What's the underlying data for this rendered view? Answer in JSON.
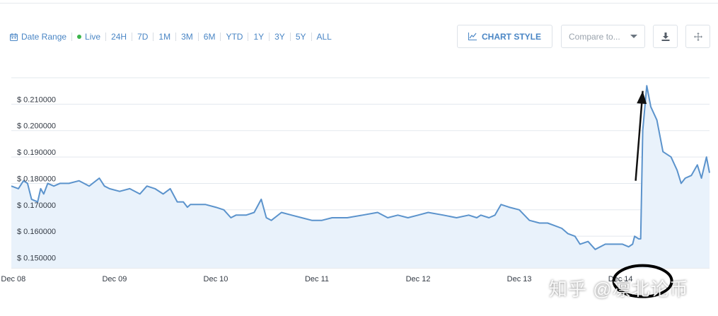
{
  "toolbar": {
    "date_range_label": "Date Range",
    "live_label": "Live",
    "live_color": "#3cb44b",
    "accent_color": "#4a86c5",
    "ranges": [
      "24H",
      "7D",
      "1M",
      "3M",
      "6M",
      "YTD",
      "1Y",
      "3Y",
      "5Y",
      "ALL"
    ],
    "chart_style_label": "CHART STYLE",
    "compare_placeholder": "Compare to...",
    "icons": [
      "calendar-icon",
      "bar-chart-icon",
      "chevron-down-icon",
      "download-icon",
      "move-icon"
    ]
  },
  "watermark": "知乎 @凛北论币",
  "chart_data": {
    "type": "area",
    "x_ticks": [
      "Dec 08",
      "Dec 09",
      "Dec 10",
      "Dec 11",
      "Dec 12",
      "Dec 13",
      "Dec 14"
    ],
    "x_tick_values": [
      8,
      9,
      10,
      11,
      12,
      13,
      14
    ],
    "xlim": [
      7.98,
      14.88
    ],
    "y_ticks": [
      "$ 0.150000",
      "$ 0.160000",
      "$ 0.170000",
      "$ 0.180000",
      "$ 0.190000",
      "$ 0.200000",
      "$ 0.210000"
    ],
    "y_tick_values": [
      0.15,
      0.16,
      0.17,
      0.18,
      0.19,
      0.2,
      0.21
    ],
    "ylim": [
      0.148,
      0.22
    ],
    "grid": true,
    "line_color": "#5b93cc",
    "fill_color": "#e9f2fb",
    "series": [
      {
        "x": [
          7.98,
          8.05,
          8.1,
          8.14,
          8.18,
          8.24,
          8.27,
          8.3,
          8.34,
          8.4,
          8.46,
          8.55,
          8.65,
          8.75,
          8.85,
          8.9,
          8.95,
          9.05,
          9.15,
          9.25,
          9.32,
          9.4,
          9.48,
          9.55,
          9.62,
          9.68,
          9.72,
          9.75,
          9.8,
          9.9,
          10.0,
          10.08,
          10.15,
          10.2,
          10.3,
          10.38,
          10.45,
          10.5,
          10.55,
          10.65,
          10.75,
          10.85,
          10.95,
          11.05,
          11.15,
          11.3,
          11.45,
          11.6,
          11.7,
          11.8,
          11.9,
          12.0,
          12.1,
          12.25,
          12.38,
          12.5,
          12.58,
          12.62,
          12.7,
          12.76,
          12.82,
          12.9,
          13.0,
          13.1,
          13.2,
          13.28,
          13.35,
          13.42,
          13.48,
          13.55,
          13.6,
          13.68,
          13.75,
          13.85,
          13.95,
          14.02,
          14.08,
          14.12,
          14.14,
          14.18,
          14.2,
          14.22,
          14.26,
          14.3,
          14.36,
          14.42,
          14.5,
          14.56,
          14.6,
          14.64,
          14.7,
          14.76,
          14.8,
          14.85,
          14.88
        ],
        "y": [
          0.179,
          0.178,
          0.181,
          0.18,
          0.174,
          0.173,
          0.178,
          0.176,
          0.18,
          0.179,
          0.18,
          0.18,
          0.181,
          0.179,
          0.182,
          0.179,
          0.178,
          0.177,
          0.178,
          0.176,
          0.179,
          0.178,
          0.176,
          0.178,
          0.173,
          0.173,
          0.171,
          0.172,
          0.172,
          0.172,
          0.171,
          0.17,
          0.167,
          0.168,
          0.168,
          0.169,
          0.174,
          0.167,
          0.166,
          0.169,
          0.168,
          0.167,
          0.166,
          0.166,
          0.167,
          0.167,
          0.168,
          0.169,
          0.167,
          0.168,
          0.167,
          0.168,
          0.169,
          0.168,
          0.167,
          0.168,
          0.167,
          0.168,
          0.167,
          0.168,
          0.172,
          0.171,
          0.17,
          0.166,
          0.165,
          0.165,
          0.164,
          0.163,
          0.161,
          0.16,
          0.157,
          0.158,
          0.155,
          0.157,
          0.157,
          0.157,
          0.156,
          0.157,
          0.16,
          0.159,
          0.159,
          0.2,
          0.217,
          0.209,
          0.204,
          0.192,
          0.19,
          0.185,
          0.18,
          0.182,
          0.183,
          0.187,
          0.182,
          0.19,
          0.184
        ]
      }
    ],
    "annotations": [
      {
        "type": "arrow",
        "from": [
          14.15,
          0.181
        ],
        "to": [
          14.22,
          0.215
        ]
      },
      {
        "type": "ellipse",
        "cx": 14.22,
        "cy": 0.143
      }
    ]
  }
}
